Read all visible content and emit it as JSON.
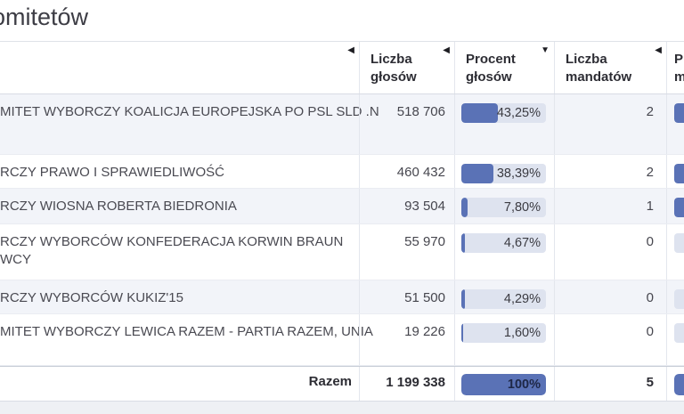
{
  "page": {
    "title_visible_fragment": "omitetów",
    "colors": {
      "accent_blue": "#5a72b6",
      "bar_background": "#dee3ef",
      "alt_row": "#f2f4f9",
      "total_bar_text": "#1e2746"
    }
  },
  "table": {
    "columns": [
      {
        "line1": "",
        "line2": "",
        "sort_icon_glyph": "◀",
        "sort_state": "inactive"
      },
      {
        "line1": "Liczba",
        "line2": "głosów",
        "sort_icon_glyph": "◀",
        "sort_state": "inactive"
      },
      {
        "line1": "Procent",
        "line2": "głosów",
        "sort_icon_glyph": "▼",
        "sort_state": "sorted-desc"
      },
      {
        "line1": "Liczba",
        "line2": "mandatów",
        "sort_icon_glyph": "◀",
        "sort_state": "inactive"
      },
      {
        "line1": "Procent",
        "line2": "mandatów",
        "sort_icon_glyph": "",
        "sort_state": "inactive"
      }
    ],
    "rows": [
      {
        "name_line1": "MITET WYBORCZY KOALICJA EUROPEJSKA PO PSL SLD .N",
        "name_line2": "",
        "votes": "518 706",
        "percent_label": "43,25%",
        "percent_value": 43.25,
        "mandates": "2",
        "mandate_bar_filled": true
      },
      {
        "name_line1": "RCZY PRAWO I SPRAWIEDLIWOŚĆ",
        "name_line2": "",
        "votes": "460 432",
        "percent_label": "38,39%",
        "percent_value": 38.39,
        "mandates": "2",
        "mandate_bar_filled": true
      },
      {
        "name_line1": "RCZY WIOSNA ROBERTA BIEDRONIA",
        "name_line2": "",
        "votes": "93 504",
        "percent_label": "7,80%",
        "percent_value": 7.8,
        "mandates": "1",
        "mandate_bar_filled": true
      },
      {
        "name_line1": "RCZY WYBORCÓW KONFEDERACJA KORWIN BRAUN",
        "name_line2": "WCY",
        "votes": "55 970",
        "percent_label": "4,67%",
        "percent_value": 4.67,
        "mandates": "0",
        "mandate_bar_filled": false
      },
      {
        "name_line1": "RCZY WYBORCÓW KUKIZ'15",
        "name_line2": "",
        "votes": "51 500",
        "percent_label": "4,29%",
        "percent_value": 4.29,
        "mandates": "0",
        "mandate_bar_filled": false
      },
      {
        "name_line1": "MITET WYBORCZY LEWICA RAZEM - PARTIA RAZEM, UNIA",
        "name_line2": "",
        "votes": "19 226",
        "percent_label": "1,60%",
        "percent_value": 1.6,
        "mandates": "0",
        "mandate_bar_filled": false
      }
    ],
    "footer": {
      "label": "Razem",
      "votes": "1 199 338",
      "percent_label": "100%",
      "percent_value": 100,
      "mandates": "5",
      "mandate_bar_filled": true
    }
  }
}
